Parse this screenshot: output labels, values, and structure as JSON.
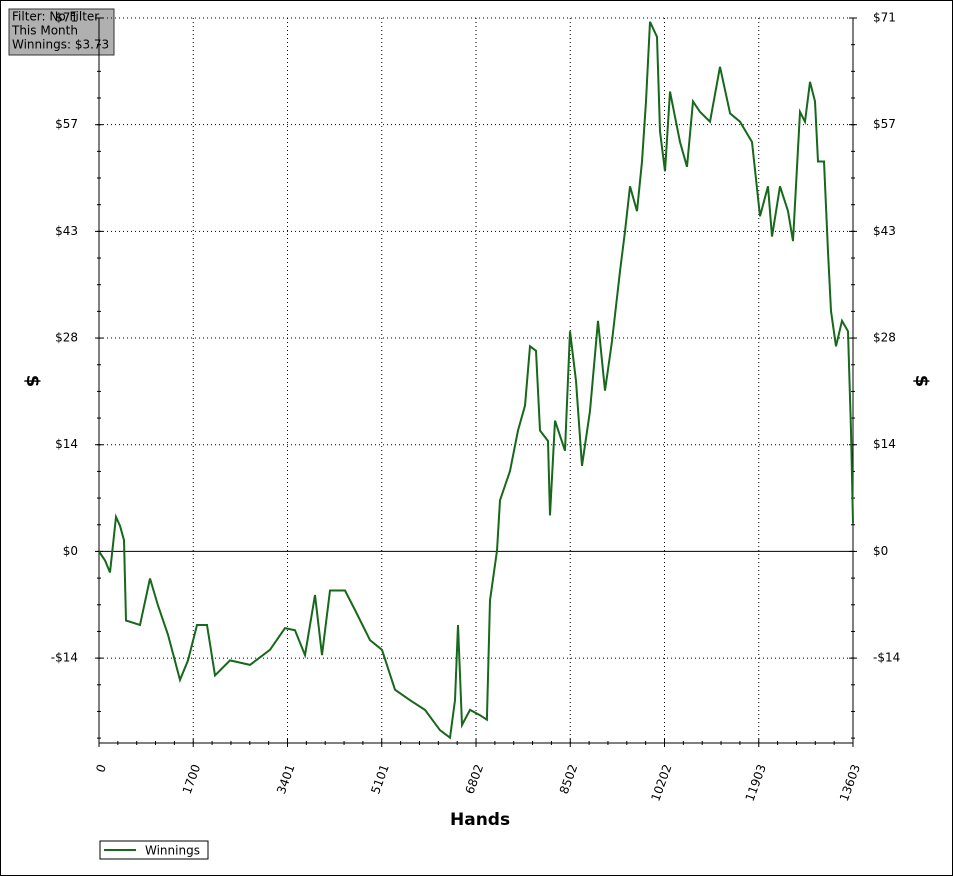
{
  "chart_data": {
    "type": "line",
    "xlabel": "Hands",
    "ylabel": "$",
    "y2label": "$",
    "annotation": [
      "Filter: No Filter",
      "This Month",
      "Winnings: $3.73"
    ],
    "x": [
      0,
      108,
      198,
      307,
      379,
      451,
      487,
      740,
      920,
      1064,
      1245,
      1461,
      1606,
      1768,
      1948,
      2093,
      2363,
      2724,
      3085,
      3356,
      3536,
      3716,
      3897,
      4023,
      4167,
      4438,
      4618,
      4889,
      5105,
      5340,
      5611,
      5882,
      6152,
      6332,
      6423,
      6477,
      6549,
      6693,
      6874,
      6999,
      7054,
      7180,
      7234,
      7415,
      7559,
      7685,
      7776,
      7884,
      7956,
      8100,
      8136,
      8226,
      8407,
      8497,
      8605,
      8713,
      8858,
      9002,
      9128,
      9255,
      9399,
      9489,
      9579,
      9706,
      9796,
      9868,
      9940,
      10067,
      10121,
      10211,
      10302,
      10482,
      10608,
      10717,
      10843,
      11024,
      11204,
      11385,
      11565,
      11781,
      11926,
      12070,
      12142,
      12286,
      12431,
      12521,
      12647,
      12737,
      12827,
      12918,
      12972,
      13080,
      13152,
      13206,
      13296,
      13405,
      13513,
      13567,
      13603
    ],
    "series": [
      {
        "name": "Winnings",
        "color": "#16681a",
        "values": [
          0,
          -1.2,
          -2.8,
          4.6,
          3.4,
          1.5,
          -9.2,
          -9.8,
          -3.6,
          -7.2,
          -11.1,
          -17.1,
          -14.5,
          -9.8,
          -9.8,
          -16.5,
          -14.5,
          -15.1,
          -13.1,
          -10.2,
          -10.5,
          -13.8,
          -5.8,
          -13.8,
          -5.2,
          -5.2,
          -7.8,
          -11.8,
          -13.1,
          -18.4,
          -19.8,
          -21.1,
          -23.8,
          -24.8,
          -19.8,
          -9.8,
          -23.1,
          -21.1,
          -21.8,
          -22.4,
          -6.5,
          0.1,
          6.8,
          10.7,
          16.1,
          19.4,
          27.3,
          26.7,
          16.1,
          14.7,
          4.8,
          17.4,
          13.4,
          29.3,
          22.7,
          11.4,
          18.7,
          30.7,
          21.4,
          28.0,
          37.3,
          42.6,
          48.6,
          45.3,
          51.9,
          59.9,
          70.5,
          68.5,
          55.9,
          50.6,
          61.2,
          54.5,
          51.2,
          59.9,
          58.5,
          57.2,
          64.5,
          58.3,
          57.2,
          54.5,
          44.6,
          48.6,
          41.9,
          48.6,
          45.3,
          41.3,
          58.5,
          57.2,
          62.5,
          59.9,
          51.9,
          51.9,
          39.9,
          32.0,
          27.3,
          30.7,
          29.3,
          16.1,
          3.73
        ]
      }
    ],
    "xlim": [
      0,
      13603
    ],
    "xticks": [
      0,
      1700,
      3401,
      5101,
      6802,
      8502,
      10202,
      11903,
      13603
    ],
    "ylim": [
      -25.5,
      71
    ],
    "yticks": [
      {
        "value": -14.2,
        "label": "-$14"
      },
      {
        "value": 0,
        "label": "$0"
      },
      {
        "value": 14.2,
        "label": "$14"
      },
      {
        "value": 28.4,
        "label": "$28"
      },
      {
        "value": 42.6,
        "label": "$43"
      },
      {
        "value": 56.8,
        "label": "$57"
      },
      {
        "value": 71,
        "label": "$71"
      }
    ],
    "grid": true,
    "legend": "bottom-left"
  }
}
